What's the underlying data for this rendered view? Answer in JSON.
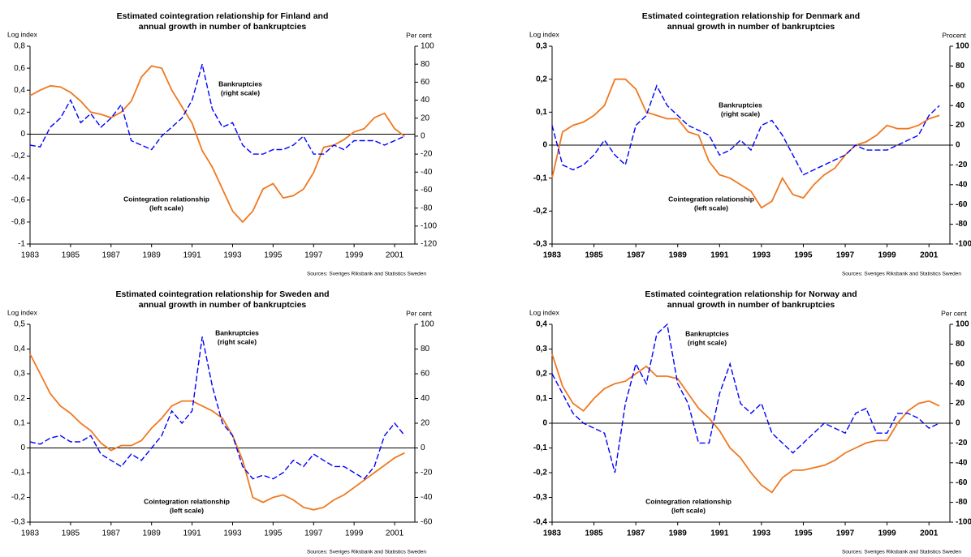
{
  "chart_data": [
    {
      "type": "line",
      "title": [
        "Estimated cointegration relationship for Finland and",
        "annual growth in number of bankruptcies"
      ],
      "y_label": "Log index",
      "y2_label": "Per cent",
      "source": "Sources: Sveriges Riksbank and Statistics Sweden",
      "x": [
        1983,
        1983.5,
        1984,
        1984.5,
        1985,
        1985.5,
        1986,
        1986.5,
        1987,
        1987.5,
        1988,
        1988.5,
        1989,
        1989.5,
        1990,
        1990.5,
        1991,
        1991.5,
        1992,
        1992.5,
        1993,
        1993.5,
        1994,
        1994.5,
        1995,
        1995.5,
        1996,
        1996.5,
        1997,
        1997.5,
        1998,
        1998.5,
        1999,
        1999.5,
        2000,
        2000.5,
        2001,
        2001.5
      ],
      "xlim": [
        1983,
        2002
      ],
      "xticks": [
        1983,
        1985,
        1987,
        1989,
        1991,
        1993,
        1995,
        1997,
        1999,
        2001
      ],
      "ylim": [
        -1,
        0.8
      ],
      "yticks": [
        -1,
        {
          "value": -0.8,
          "label": "-0,8"
        },
        {
          "value": -0.6,
          "label": "-0,6"
        },
        {
          "value": -0.4,
          "label": "-0,4"
        },
        {
          "value": -0.2,
          "label": "-0,2"
        },
        0,
        {
          "value": 0.2,
          "label": "0,2"
        },
        {
          "value": 0.4,
          "label": "0,4"
        },
        {
          "value": 0.6,
          "label": "0,6"
        },
        {
          "value": 0.8,
          "label": "0,8"
        }
      ],
      "y2lim": [
        -120,
        100
      ],
      "y2ticks": [
        -120,
        -100,
        -80,
        -60,
        -40,
        -20,
        0,
        20,
        40,
        60,
        80,
        100
      ],
      "series": [
        {
          "name": "Cointegration relationship",
          "scale_label": "(left scale)",
          "color": "#f07820",
          "style": "solid",
          "values": [
            0.35,
            0.4,
            0.44,
            0.43,
            0.38,
            0.3,
            0.2,
            0.18,
            0.15,
            0.2,
            0.3,
            0.52,
            0.62,
            0.6,
            0.4,
            0.25,
            0.1,
            -0.15,
            -0.3,
            -0.5,
            -0.7,
            -0.8,
            -0.7,
            -0.5,
            -0.45,
            -0.58,
            -0.56,
            -0.5,
            -0.35,
            -0.12,
            -0.1,
            -0.05,
            0.02,
            0.05,
            0.15,
            0.19,
            0.05,
            -0.02
          ]
        },
        {
          "name": "Bankruptcies",
          "scale_label": "(right scale)",
          "color": "#0000ff",
          "style": "dashed",
          "axis": "y2",
          "values": [
            -10,
            -12,
            10,
            20,
            40,
            15,
            25,
            10,
            20,
            35,
            -5,
            -10,
            -15,
            0,
            10,
            20,
            40,
            80,
            30,
            10,
            15,
            -10,
            -20,
            -20,
            -15,
            -15,
            -10,
            0,
            -20,
            -20,
            -10,
            -15,
            -5,
            -5,
            -5,
            -10,
            -5,
            0
          ]
        }
      ]
    },
    {
      "type": "line",
      "title": [
        "Estimated cointegration relationship for Denmark and",
        "annual growth in number of bankruptcies"
      ],
      "y_label": "Log index",
      "y2_label": "Procent",
      "source": "Sources: Sveriges Riksbank and Statistics Sweden",
      "x": [
        1983,
        1983.5,
        1984,
        1984.5,
        1985,
        1985.5,
        1986,
        1986.5,
        1987,
        1987.5,
        1988,
        1988.5,
        1989,
        1989.5,
        1990,
        1990.5,
        1991,
        1991.5,
        1992,
        1992.5,
        1993,
        1993.5,
        1994,
        1994.5,
        1995,
        1995.5,
        1996,
        1996.5,
        1997,
        1997.5,
        1998,
        1998.5,
        1999,
        1999.5,
        2000,
        2000.5,
        2001,
        2001.5
      ],
      "xlim": [
        1983,
        2002
      ],
      "xticks": [
        1983,
        1985,
        1987,
        1989,
        1991,
        1993,
        1995,
        1997,
        1999,
        2001
      ],
      "ylim": [
        -0.3,
        0.3
      ],
      "yticks": [
        {
          "value": -0.3,
          "label": "-0,3"
        },
        {
          "value": -0.2,
          "label": "-0,2"
        },
        {
          "value": -0.1,
          "label": "-0,1"
        },
        0,
        {
          "value": 0.1,
          "label": "0,1"
        },
        {
          "value": 0.2,
          "label": "0,2"
        },
        {
          "value": 0.3,
          "label": "0,3"
        }
      ],
      "y2lim": [
        -100,
        100
      ],
      "y2ticks": [
        -100,
        -80,
        -60,
        -40,
        -20,
        0,
        20,
        40,
        60,
        80,
        100
      ],
      "series": [
        {
          "name": "Cointegration relationship",
          "scale_label": "(left scale)",
          "color": "#f07820",
          "style": "solid",
          "values": [
            -0.1,
            0.04,
            0.06,
            0.07,
            0.09,
            0.12,
            0.2,
            0.2,
            0.17,
            0.1,
            0.09,
            0.08,
            0.08,
            0.04,
            0.03,
            -0.05,
            -0.09,
            -0.1,
            -0.12,
            -0.14,
            -0.19,
            -0.17,
            -0.1,
            -0.15,
            -0.16,
            -0.12,
            -0.09,
            -0.07,
            -0.03,
            0,
            0.01,
            0.03,
            0.06,
            0.05,
            0.05,
            0.06,
            0.08,
            0.09
          ]
        },
        {
          "name": "Bankruptcies",
          "scale_label": "(right scale)",
          "color": "#0000ff",
          "style": "dashed",
          "axis": "y2",
          "values": [
            20,
            -20,
            -25,
            -20,
            -10,
            5,
            -10,
            -20,
            20,
            30,
            60,
            40,
            30,
            20,
            15,
            10,
            -10,
            -5,
            5,
            -5,
            20,
            25,
            10,
            -10,
            -30,
            -25,
            -20,
            -15,
            -10,
            0,
            -5,
            -5,
            -5,
            0,
            5,
            10,
            30,
            40
          ]
        }
      ]
    },
    {
      "type": "line",
      "title": [
        "Estimated cointegration relationship for Sweden and",
        "annual growth in number of bankruptcies"
      ],
      "y_label": "Log index",
      "y2_label": "Per cent",
      "source": "Sources: Sveriges Riksbank and Statistics Sweden",
      "x": [
        1983,
        1983.5,
        1984,
        1984.5,
        1985,
        1985.5,
        1986,
        1986.5,
        1987,
        1987.5,
        1988,
        1988.5,
        1989,
        1989.5,
        1990,
        1990.5,
        1991,
        1991.5,
        1992,
        1992.5,
        1993,
        1993.5,
        1994,
        1994.5,
        1995,
        1995.5,
        1996,
        1996.5,
        1997,
        1997.5,
        1998,
        1998.5,
        1999,
        1999.5,
        2000,
        2000.5,
        2001,
        2001.5
      ],
      "xlim": [
        1983,
        2002
      ],
      "xticks": [
        1983,
        1985,
        1987,
        1989,
        1991,
        1993,
        1995,
        1997,
        1999,
        2001
      ],
      "ylim": [
        -0.3,
        0.5
      ],
      "yticks": [
        {
          "value": -0.3,
          "label": "-0,3"
        },
        {
          "value": -0.2,
          "label": "-0,2"
        },
        {
          "value": -0.1,
          "label": "-0,1"
        },
        0,
        {
          "value": 0.1,
          "label": "0,1"
        },
        {
          "value": 0.2,
          "label": "0,2"
        },
        {
          "value": 0.3,
          "label": "0,3"
        },
        {
          "value": 0.4,
          "label": "0,4"
        },
        {
          "value": 0.5,
          "label": "0,5"
        }
      ],
      "y2lim": [
        -60,
        100
      ],
      "y2ticks": [
        -60,
        -40,
        -20,
        0,
        20,
        40,
        60,
        80,
        100
      ],
      "series": [
        {
          "name": "Cointegration relationship",
          "scale_label": "(left scale)",
          "color": "#f07820",
          "style": "solid",
          "values": [
            0.38,
            0.3,
            0.22,
            0.17,
            0.14,
            0.1,
            0.07,
            0.02,
            -0.01,
            0.01,
            0.01,
            0.03,
            0.08,
            0.12,
            0.17,
            0.19,
            0.19,
            0.17,
            0.15,
            0.12,
            0.05,
            -0.05,
            -0.2,
            -0.22,
            -0.2,
            -0.19,
            -0.21,
            -0.24,
            -0.25,
            -0.24,
            -0.21,
            -0.19,
            -0.16,
            -0.13,
            -0.1,
            -0.07,
            -0.04,
            -0.02
          ]
        },
        {
          "name": "Bankruptcies",
          "scale_label": "(right scale)",
          "color": "#0000ff",
          "style": "dashed",
          "axis": "y2",
          "values": [
            5,
            3,
            8,
            10,
            5,
            5,
            10,
            -5,
            -10,
            -15,
            -5,
            -10,
            0,
            10,
            30,
            20,
            30,
            90,
            50,
            20,
            10,
            -15,
            -25,
            -22,
            -25,
            -20,
            -10,
            -15,
            -5,
            -10,
            -15,
            -15,
            -20,
            -25,
            -15,
            10,
            20,
            10
          ]
        }
      ]
    },
    {
      "type": "line",
      "title": [
        "Estimated cointegration relationship for Norway and",
        "annual growth in number of bankruptcies"
      ],
      "y_label": "Log index",
      "y2_label": "Per cent",
      "source": "Sources: Sveriges Riksbank and Statistics Sweden",
      "x": [
        1983,
        1983.5,
        1984,
        1984.5,
        1985,
        1985.5,
        1986,
        1986.5,
        1987,
        1987.5,
        1988,
        1988.5,
        1989,
        1989.5,
        1990,
        1990.5,
        1991,
        1991.5,
        1992,
        1992.5,
        1993,
        1993.5,
        1994,
        1994.5,
        1995,
        1995.5,
        1996,
        1996.5,
        1997,
        1997.5,
        1998,
        1998.5,
        1999,
        1999.5,
        2000,
        2000.5,
        2001,
        2001.5
      ],
      "xlim": [
        1983,
        2002
      ],
      "xticks": [
        1983,
        1985,
        1987,
        1989,
        1991,
        1993,
        1995,
        1997,
        1999,
        2001
      ],
      "ylim": [
        -0.4,
        0.4
      ],
      "yticks": [
        {
          "value": -0.4,
          "label": "-0,4"
        },
        {
          "value": -0.3,
          "label": "-0,3"
        },
        {
          "value": -0.2,
          "label": "-0,2"
        },
        {
          "value": -0.1,
          "label": "-0,1"
        },
        0,
        {
          "value": 0.1,
          "label": "0,1"
        },
        {
          "value": 0.2,
          "label": "0,2"
        },
        {
          "value": 0.3,
          "label": "0,3"
        },
        {
          "value": 0.4,
          "label": "0,4"
        }
      ],
      "y2lim": [
        -100,
        100
      ],
      "y2ticks": [
        -100,
        -80,
        -60,
        -40,
        -20,
        0,
        20,
        40,
        60,
        80,
        100
      ],
      "series": [
        {
          "name": "Cointegration relationship",
          "scale_label": "(left scale)",
          "color": "#f07820",
          "style": "solid",
          "values": [
            0.28,
            0.15,
            0.08,
            0.05,
            0.1,
            0.14,
            0.16,
            0.17,
            0.2,
            0.23,
            0.19,
            0.19,
            0.18,
            0.12,
            0.06,
            0.02,
            -0.03,
            -0.1,
            -0.14,
            -0.2,
            -0.25,
            -0.28,
            -0.22,
            -0.19,
            -0.19,
            -0.18,
            -0.17,
            -0.15,
            -0.12,
            -0.1,
            -0.08,
            -0.07,
            -0.07,
            0,
            0.05,
            0.08,
            0.09,
            0.07
          ]
        },
        {
          "name": "Bankruptcies",
          "scale_label": "(right scale)",
          "color": "#0000ff",
          "style": "dashed",
          "axis": "y2",
          "values": [
            50,
            30,
            10,
            0,
            -5,
            -10,
            -50,
            20,
            60,
            40,
            90,
            100,
            40,
            20,
            -20,
            -20,
            30,
            60,
            20,
            10,
            20,
            -10,
            -20,
            -30,
            -20,
            -10,
            0,
            -5,
            -10,
            10,
            15,
            -10,
            -10,
            10,
            10,
            5,
            -5,
            0
          ]
        }
      ]
    }
  ]
}
